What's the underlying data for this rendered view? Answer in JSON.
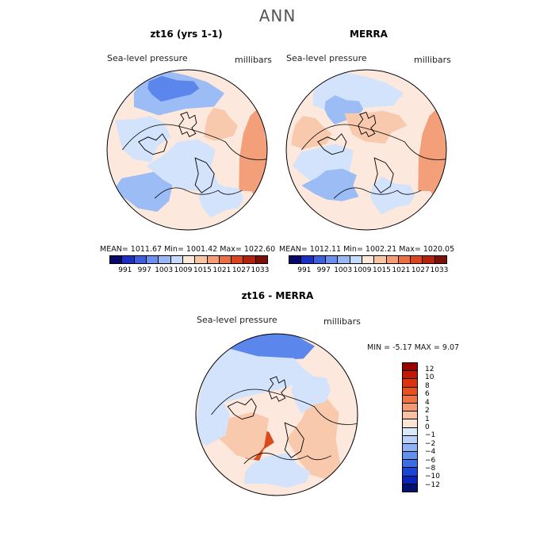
{
  "title": "ANN",
  "panels": [
    {
      "title": "zt16 (yrs 1-1)",
      "variable": "Sea-level pressure",
      "units": "millibars",
      "stats": {
        "mean": "1011.67",
        "min": "1001.42",
        "max": "1022.60"
      },
      "stats_text": "MEAN= 1011.67   Min= 1001.42   Max= 1022.60"
    },
    {
      "title": "MERRA",
      "variable": "Sea-level pressure",
      "units": "millibars",
      "stats": {
        "mean": "1012.11",
        "min": "1002.21",
        "max": "1020.05"
      },
      "stats_text": "MEAN= 1012.11   Min= 1002.21   Max= 1020.05"
    },
    {
      "title": "zt16 - MERRA",
      "variable": "Sea-level pressure",
      "units": "millibars",
      "stats": {
        "min": "-5.17",
        "max": "9.07"
      },
      "stats_text": "MIN =   -5.17  MAX =    9.07"
    }
  ],
  "abs_colorbar": {
    "labels": [
      "991",
      "997",
      "1003",
      "1009",
      "1015",
      "1021",
      "1027",
      "1033"
    ],
    "colors": [
      "#08086b",
      "#1a2fc4",
      "#3c5fe0",
      "#6a8ff0",
      "#98b8f5",
      "#c4dbfa",
      "#fbe6d8",
      "#f7c4a4",
      "#f29d75",
      "#ec6f44",
      "#dc4420",
      "#b4220d",
      "#7d0f05"
    ]
  },
  "diff_colorbar": {
    "labels": [
      "12",
      "10",
      "8",
      "6",
      "4",
      "2",
      "1",
      "0",
      "−1",
      "−2",
      "−4",
      "−6",
      "−8",
      "−10",
      "−12"
    ],
    "colors": [
      "#990000",
      "#c01a06",
      "#d93312",
      "#e8501e",
      "#ef7342",
      "#f39a72",
      "#f7c1a2",
      "#fce3d4",
      "#d9e8fb",
      "#b8d2f8",
      "#8eb3f4",
      "#6490ee",
      "#3b6de6",
      "#1c45d6",
      "#0a23b8",
      "#00106e"
    ]
  },
  "colors": {
    "base": "#fce8dc",
    "blue_light": "#d2e3fb",
    "blue_mid": "#9bbcf5",
    "blue_dark": "#5b87ec",
    "red_light": "#f8c9ad",
    "red_mid": "#f3a07a",
    "red_dark": "#d94a1c"
  }
}
